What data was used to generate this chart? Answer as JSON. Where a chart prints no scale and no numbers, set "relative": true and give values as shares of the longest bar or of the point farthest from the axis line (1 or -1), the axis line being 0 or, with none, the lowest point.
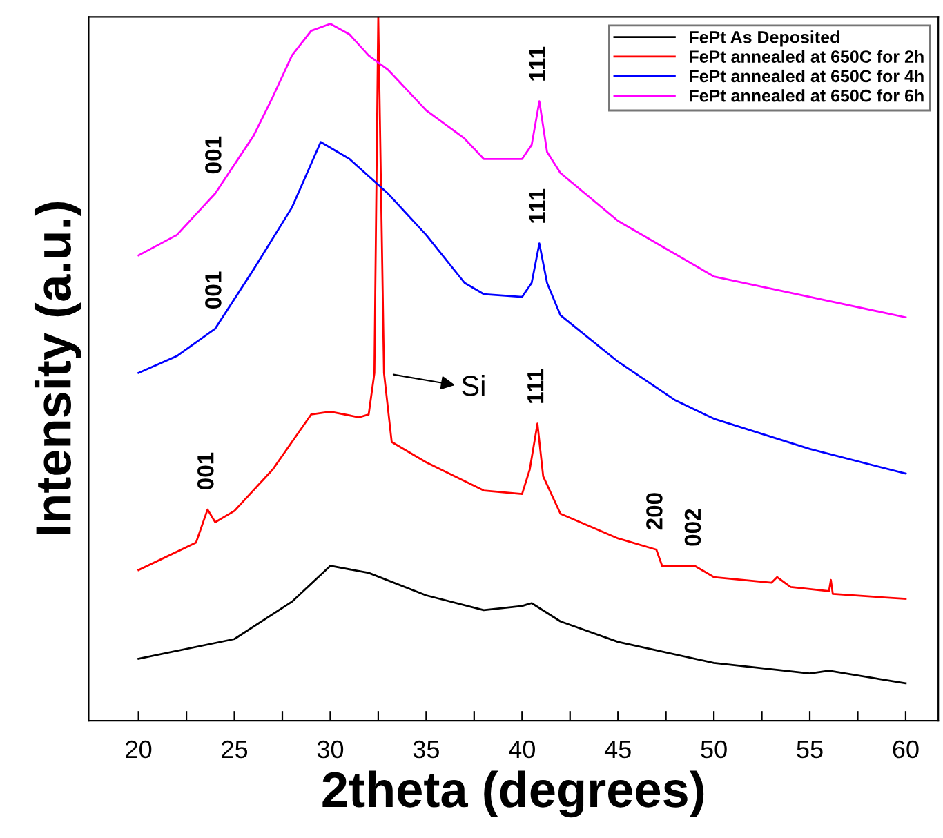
{
  "chart_data": {
    "type": "line",
    "relative": true,
    "xlabel": "2theta (degrees)",
    "ylabel": "Intensity (a.u.)",
    "xlim": [
      17.4,
      61.7
    ],
    "xticks": [
      20,
      {
        "value": 22.5,
        "label": null
      },
      25,
      {
        "value": 27.5,
        "label": null
      },
      30,
      {
        "value": 32.5,
        "label": null
      },
      35,
      {
        "value": 37.5,
        "label": null
      },
      40,
      {
        "value": 42.5,
        "label": null
      },
      45,
      {
        "value": 47.5,
        "label": null
      },
      50,
      {
        "value": 52.5,
        "label": null
      },
      55,
      {
        "value": 57.5,
        "label": null
      },
      60
    ],
    "legend": "top right",
    "grid": false,
    "series": [
      {
        "name": "FePt As Deposited",
        "color": "#000000",
        "x": [
          20,
          25,
          28,
          30,
          32,
          35,
          38,
          40,
          40.5,
          42,
          45,
          50,
          55,
          56,
          60
        ],
        "values": [
          0.088,
          0.116,
          0.169,
          0.22,
          0.21,
          0.178,
          0.157,
          0.163,
          0.167,
          0.141,
          0.112,
          0.082,
          0.067,
          0.071,
          0.053
        ]
      },
      {
        "name": "FePt annealed at 650C for 2h",
        "color": "#ff0000",
        "x": [
          20,
          23,
          23.6,
          24,
          25,
          27,
          29,
          30,
          31.5,
          32,
          32.3,
          32.5,
          32.8,
          33.2,
          35,
          38,
          40,
          40.4,
          40.8,
          41.1,
          42,
          45,
          47,
          47.3,
          49,
          50,
          53,
          53.3,
          54,
          56,
          56.1,
          56.2,
          60
        ],
        "values": [
          0.214,
          0.253,
          0.3,
          0.282,
          0.298,
          0.357,
          0.435,
          0.439,
          0.431,
          0.435,
          0.494,
          1,
          0.494,
          0.396,
          0.367,
          0.327,
          0.322,
          0.357,
          0.422,
          0.347,
          0.294,
          0.259,
          0.243,
          0.22,
          0.22,
          0.204,
          0.196,
          0.204,
          0.19,
          0.184,
          0.2,
          0.18,
          0.173
        ]
      },
      {
        "name": "FePt annealed at 650C for 4h",
        "color": "#0000ff",
        "x": [
          20,
          22,
          24,
          26,
          28,
          29.5,
          31,
          33,
          35,
          37,
          38,
          40,
          40.5,
          40.9,
          41.3,
          42,
          45,
          48,
          50,
          55,
          60
        ],
        "values": [
          0.494,
          0.518,
          0.557,
          0.641,
          0.729,
          0.822,
          0.798,
          0.749,
          0.69,
          0.622,
          0.606,
          0.602,
          0.622,
          0.678,
          0.622,
          0.576,
          0.51,
          0.455,
          0.429,
          0.386,
          0.351
        ]
      },
      {
        "name": "FePt annealed at 650C for 6h",
        "color": "#ff00ff",
        "x": [
          20,
          22,
          24,
          26,
          27,
          28,
          29,
          30,
          31,
          32,
          33,
          35,
          37,
          38,
          40,
          40.5,
          40.9,
          41.3,
          42,
          45,
          50,
          55,
          60
        ],
        "values": [
          0.661,
          0.69,
          0.749,
          0.831,
          0.886,
          0.945,
          0.98,
          0.99,
          0.975,
          0.945,
          0.925,
          0.867,
          0.827,
          0.798,
          0.798,
          0.818,
          0.88,
          0.808,
          0.778,
          0.71,
          0.631,
          0.602,
          0.573
        ]
      }
    ],
    "annotations": [
      {
        "text": "001",
        "x": 24,
        "y": 0.749
      },
      {
        "text": "001",
        "x": 24,
        "y": 0.557
      },
      {
        "text": "001",
        "x": 23.6,
        "y": 0.3
      },
      {
        "text": "111",
        "x": 40.9,
        "y": 0.88
      },
      {
        "text": "111",
        "x": 40.9,
        "y": 0.678
      },
      {
        "text": "111",
        "x": 40.8,
        "y": 0.422
      },
      {
        "text": "200",
        "x": 47,
        "y": 0.243
      },
      {
        "text": "002",
        "x": 49,
        "y": 0.22
      },
      {
        "text": "Si",
        "x": 32.8,
        "y": 0.494
      }
    ]
  }
}
